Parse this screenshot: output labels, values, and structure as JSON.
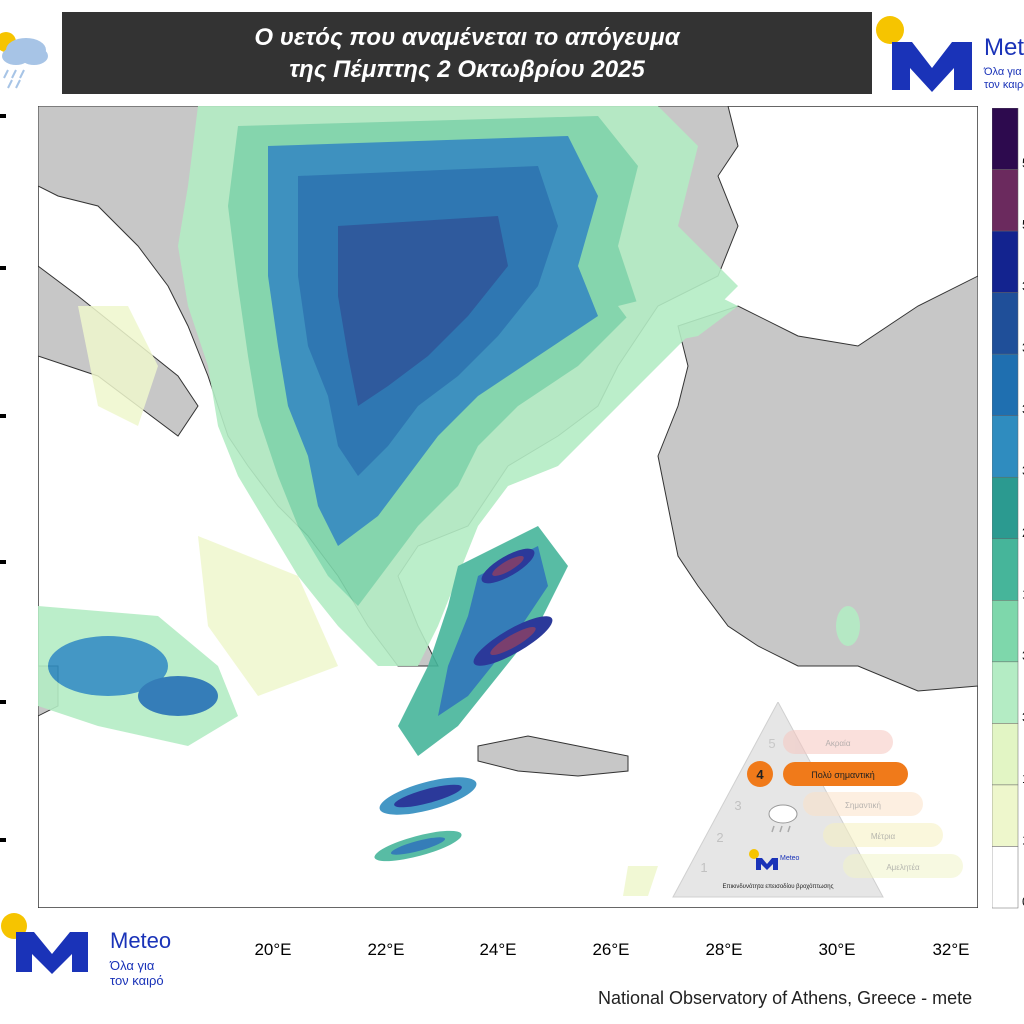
{
  "title": {
    "line1": "Ο υετός που  αναμένεται το απόγευμα",
    "line2": "της Πέμπτης 2 Οκτωβρίου 2025"
  },
  "brand": {
    "name": "Meteo",
    "tagline_line1": "Όλα για",
    "tagline_line2": "τον καιρό",
    "colors": {
      "blue": "#1a33b8",
      "sun": "#f6c400"
    }
  },
  "icons": {
    "weather": "rain-cloud-icon",
    "logo": "meteo-logo-icon"
  },
  "map": {
    "longitude_labels": [
      "20°E",
      "22°E",
      "24°E",
      "26°E",
      "28°E",
      "30°E",
      "32°E"
    ],
    "land_color": "#c7c7c7",
    "sea_color": "#ffffff",
    "border_color": "#222222"
  },
  "legend": {
    "colors": [
      "#2d0a4e",
      "#6b2a5e",
      "#13238f",
      "#1f4f99",
      "#1f6fb0",
      "#2f8cbf",
      "#2b9a90",
      "#46b59a",
      "#7ed7ab",
      "#b4ecc4",
      "#e2f5c4",
      "#eef7cc",
      "#ffffff"
    ],
    "visible_digits": [
      "5",
      "5",
      "3",
      "3",
      "3",
      "3",
      "2",
      "1",
      "3",
      "3",
      "1",
      "1",
      "0"
    ]
  },
  "warning_scale": {
    "levels": [
      "1",
      "2",
      "3",
      "4",
      "5"
    ],
    "labels": [
      "Αμελητέα",
      "Μέτρια",
      "Σημαντική",
      "Πολύ σημαντική",
      "Ακραία"
    ],
    "active_level": "4",
    "caption": "Επικινδυνότητα επεισοδίου βροχόπτωσης",
    "active_color": "#f07a1a"
  },
  "credit": "National Observatory of Athens, Greece - mete"
}
